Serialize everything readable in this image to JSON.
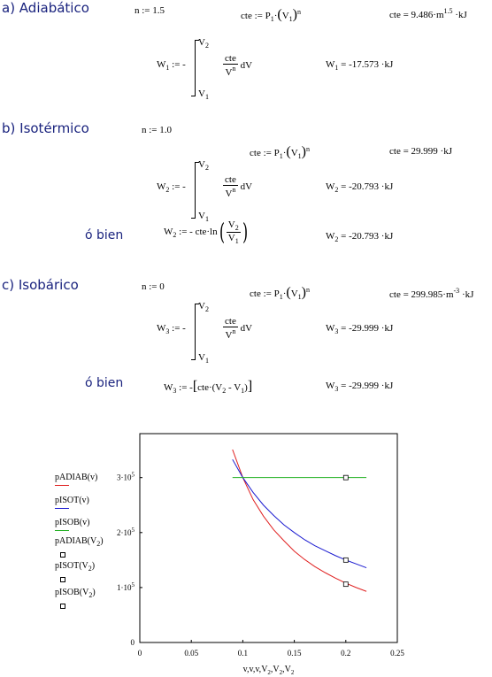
{
  "sections": {
    "a": {
      "heading": "a)  Adiabático",
      "n_assign": "n := 1.5",
      "cte_def": {
        "lhs": "cte := P",
        "p_sub": "1",
        "v": "V",
        "v_sub": "1",
        "exp": "n"
      },
      "cte_result": {
        "prefix": "cte = 9.486",
        "unit": "m",
        "unit_exp": "1.5",
        "suffix": "kJ"
      },
      "work_def": {
        "lhs": "W",
        "lhs_sub": "1",
        "assign": ":= -",
        "upper": "V",
        "upper_sub": "2",
        "lower": "V",
        "lower_sub": "1",
        "num": "cte",
        "den": "V",
        "den_exp": "n",
        "dv": "dV"
      },
      "work_result": {
        "lhs": "W",
        "lhs_sub": "1",
        "value": " = -17.573",
        "unit": "kJ"
      }
    },
    "b": {
      "heading": "b)  Isotérmico",
      "n_assign": "n := 1.0",
      "cte_def": {
        "lhs": "cte := P",
        "p_sub": "1",
        "v": "V",
        "v_sub": "1",
        "exp": "n"
      },
      "cte_result": {
        "prefix": "cte = 29.999",
        "suffix": "kJ"
      },
      "work_def": {
        "lhs": "W",
        "lhs_sub": "2",
        "assign": ":= -",
        "upper": "V",
        "upper_sub": "2",
        "lower": "V",
        "lower_sub": "1",
        "num": "cte",
        "den": "V",
        "den_exp": "n",
        "dv": "dV"
      },
      "work_result": {
        "lhs": "W",
        "lhs_sub": "2",
        "value": " = -20.793",
        "unit": "kJ"
      },
      "alt_label": "ó bien",
      "alt_def": {
        "lhs": "W",
        "lhs_sub": "2",
        "expr": ":= - cte·ln",
        "num": "V",
        "num_sub": "2",
        "den": "V",
        "den_sub": "1"
      },
      "alt_result": {
        "lhs": "W",
        "lhs_sub": "2",
        "value": " = -20.793",
        "unit": "kJ"
      }
    },
    "c": {
      "heading": "c)  Isobárico",
      "n_assign": "n := 0",
      "cte_def": {
        "lhs": "cte := P",
        "p_sub": "1",
        "v": "V",
        "v_sub": "1",
        "exp": "n"
      },
      "cte_result": {
        "prefix": "cte = 299.985",
        "unit": "m",
        "unit_exp": "-3",
        "suffix": "kJ"
      },
      "work_def": {
        "lhs": "W",
        "lhs_sub": "3",
        "assign": ":= -",
        "upper": "V",
        "upper_sub": "2",
        "lower": "V",
        "lower_sub": "1",
        "num": "cte",
        "den": "V",
        "den_exp": "n",
        "dv": "dV"
      },
      "work_result": {
        "lhs": "W",
        "lhs_sub": "3",
        "value": " = -29.999",
        "unit": "kJ"
      },
      "alt_label": "ó bien",
      "alt_def": {
        "lhs": "W",
        "lhs_sub": "3",
        "expr": ":= -",
        "inner": "cte·(V",
        "s2": "2",
        "mid": " - V",
        "s1": "1",
        "close": ")"
      },
      "alt_result": {
        "lhs": "W",
        "lhs_sub": "3",
        "value": " = -29.999",
        "unit": "kJ"
      }
    }
  },
  "chart_data": {
    "type": "line",
    "xlabel": "v,v,v,V2,V2,V2",
    "xlim": [
      0,
      0.25
    ],
    "ylim": [
      0,
      380000
    ],
    "x_ticks": [
      "0",
      "0.05",
      "0.1",
      "0.15",
      "0.2",
      "0.25"
    ],
    "y_ticks": [
      {
        "value": 0,
        "label": "0"
      },
      {
        "value": 100000,
        "label": "1·10",
        "exp": "5"
      },
      {
        "value": 200000,
        "label": "2·10",
        "exp": "5"
      },
      {
        "value": 300000,
        "label": "3·10",
        "exp": "5"
      }
    ],
    "series": [
      {
        "name": "pADIAB(v)",
        "color": "#e02020",
        "style": "line",
        "x": [
          0.09,
          0.1,
          0.11,
          0.12,
          0.13,
          0.14,
          0.15,
          0.16,
          0.17,
          0.18,
          0.19,
          0.2,
          0.21,
          0.22
        ],
        "y": [
          351000,
          300000,
          260000,
          230000,
          205000,
          185000,
          166000,
          151000,
          138000,
          127000,
          117000,
          108000,
          100000,
          93000
        ]
      },
      {
        "name": "pISOT(v)",
        "color": "#1a1ad0",
        "style": "line",
        "x": [
          0.09,
          0.1,
          0.11,
          0.12,
          0.13,
          0.14,
          0.15,
          0.16,
          0.17,
          0.18,
          0.19,
          0.2,
          0.21,
          0.22
        ],
        "y": [
          333000,
          300000,
          273000,
          250000,
          231000,
          214000,
          200000,
          187000,
          176000,
          167000,
          158000,
          150000,
          143000,
          136000
        ]
      },
      {
        "name": "pISOB(v)",
        "color": "#20b020",
        "style": "line",
        "x": [
          0.09,
          0.22
        ],
        "y": [
          300000,
          300000
        ]
      },
      {
        "name": "pADIAB(V2)",
        "style": "marker",
        "x": [
          0.2
        ],
        "y": [
          106000
        ]
      },
      {
        "name": "pISOT(V2)",
        "style": "marker",
        "x": [
          0.2
        ],
        "y": [
          150000
        ]
      },
      {
        "name": "pISOB(V2)",
        "style": "marker",
        "x": [
          0.2
        ],
        "y": [
          300000
        ]
      }
    ]
  }
}
